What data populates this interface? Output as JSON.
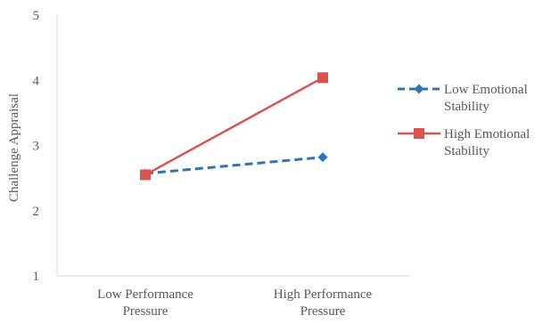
{
  "colors": {
    "low_series": "#2E75B6",
    "high_series": "#D9534F",
    "axis": "#D9D9D9",
    "text": "#595959"
  },
  "chart_data": {
    "type": "line",
    "title": "",
    "xlabel": "",
    "ylabel": "Challenge Appraisal",
    "ylim": [
      1,
      5
    ],
    "yticks": [
      1,
      2,
      3,
      4,
      5
    ],
    "grid": false,
    "legend_position": "right",
    "categories": [
      [
        "Low Performance",
        "Pressure"
      ],
      [
        "High Performance",
        "Pressure"
      ]
    ],
    "series": [
      {
        "name": [
          "Low Emotional",
          "Stability"
        ],
        "values": [
          2.57,
          2.82
        ],
        "color": "#2E75B6",
        "line_style": "dashed",
        "marker": "diamond"
      },
      {
        "name": [
          "High Emotional",
          "Stability"
        ],
        "values": [
          2.55,
          4.04
        ],
        "color": "#D9534F",
        "line_style": "solid",
        "marker": "square"
      }
    ]
  }
}
